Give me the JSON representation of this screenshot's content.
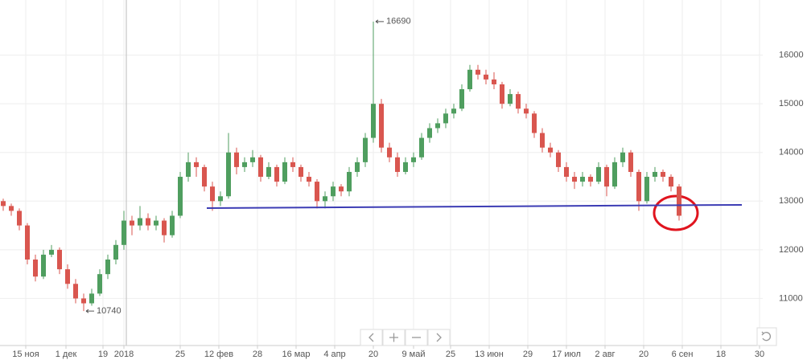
{
  "chart_data": {
    "type": "candlestick",
    "up_color": "#4f9e5f",
    "down_color": "#d9564f",
    "xlim": [
      0,
      240
    ],
    "ylim": [
      10000,
      17100
    ],
    "xticks": [
      {
        "value": 8,
        "label": "15 ноя"
      },
      {
        "value": 20.5,
        "label": "1 дек"
      },
      {
        "value": 32,
        "label": "19"
      },
      {
        "value": 38.5,
        "label": "2018"
      },
      {
        "value": 56,
        "label": "25"
      },
      {
        "value": 68,
        "label": "12 фев"
      },
      {
        "value": 80,
        "label": "28"
      },
      {
        "value": 92,
        "label": "16 мар"
      },
      {
        "value": 104,
        "label": "4 апр"
      },
      {
        "value": 116,
        "label": "20"
      },
      {
        "value": 128.5,
        "label": "9 май"
      },
      {
        "value": 140,
        "label": "25"
      },
      {
        "value": 152,
        "label": "13 июн"
      },
      {
        "value": 164,
        "label": "29"
      },
      {
        "value": 176,
        "label": "17 июл"
      },
      {
        "value": 188,
        "label": "2 авг"
      },
      {
        "value": 200,
        "label": "20"
      },
      {
        "value": 212,
        "label": "6 сен"
      },
      {
        "value": 224,
        "label": "18"
      },
      {
        "value": 236,
        "label": "30"
      }
    ],
    "yticks": [
      11000,
      12000,
      13000,
      14000,
      15000,
      16000
    ],
    "grid": true,
    "high_label": 16690,
    "low_label": 10740,
    "lines": [
      {
        "x": [
          64.25,
          230.5
        ],
        "y": [
          12857,
          12923
        ],
        "color": "#3c3cb4"
      }
    ],
    "candles": [
      [
        13000,
        13050,
        12800,
        12900
      ],
      [
        12900,
        12950,
        12700,
        12800
      ],
      [
        12800,
        12850,
        12400,
        12500
      ],
      [
        12500,
        12550,
        11700,
        11800
      ],
      [
        11800,
        11900,
        11350,
        11450
      ],
      [
        11450,
        12000,
        11400,
        11900
      ],
      [
        11900,
        12100,
        11850,
        12000
      ],
      [
        12000,
        12050,
        11500,
        11600
      ],
      [
        11600,
        11700,
        11200,
        11300
      ],
      [
        11300,
        11400,
        10900,
        11000
      ],
      [
        11000,
        11100,
        10740,
        10900
      ],
      [
        10900,
        11200,
        10850,
        11100
      ],
      [
        11100,
        11600,
        11050,
        11500
      ],
      [
        11500,
        11900,
        11400,
        11800
      ],
      [
        11800,
        12200,
        11700,
        12100
      ],
      [
        12100,
        12800,
        12000,
        12600
      ],
      [
        12600,
        12700,
        12300,
        12500
      ],
      [
        12500,
        12900,
        12400,
        12650
      ],
      [
        12650,
        12750,
        12400,
        12500
      ],
      [
        12500,
        12700,
        12400,
        12600
      ],
      [
        12600,
        12650,
        12150,
        12300
      ],
      [
        12300,
        12800,
        12250,
        12700
      ],
      [
        12700,
        13600,
        12650,
        13500
      ],
      [
        13500,
        14000,
        13400,
        13800
      ],
      [
        13800,
        13900,
        13500,
        13700
      ],
      [
        13700,
        13750,
        13200,
        13300
      ],
      [
        13300,
        13400,
        12800,
        13000
      ],
      [
        13000,
        13200,
        12900,
        13100
      ],
      [
        13100,
        14400,
        13050,
        14000
      ],
      [
        14000,
        14100,
        13550,
        13700
      ],
      [
        13700,
        13900,
        13600,
        13800
      ],
      [
        13800,
        14050,
        13700,
        13900
      ],
      [
        13900,
        13950,
        13400,
        13500
      ],
      [
        13500,
        13800,
        13450,
        13700
      ],
      [
        13700,
        13750,
        13300,
        13400
      ],
      [
        13400,
        13900,
        13350,
        13800
      ],
      [
        13800,
        13900,
        13600,
        13700
      ],
      [
        13700,
        13750,
        13400,
        13500
      ],
      [
        13500,
        13600,
        13300,
        13400
      ],
      [
        13400,
        13450,
        12850,
        13000
      ],
      [
        13000,
        13200,
        12850,
        13100
      ],
      [
        13100,
        13400,
        13000,
        13300
      ],
      [
        13300,
        13350,
        13100,
        13200
      ],
      [
        13200,
        13700,
        13100,
        13600
      ],
      [
        13600,
        13900,
        13500,
        13800
      ],
      [
        13800,
        14400,
        13700,
        14300
      ],
      [
        14300,
        16690,
        14200,
        15000
      ],
      [
        15000,
        15100,
        14000,
        14100
      ],
      [
        14100,
        14200,
        13800,
        13900
      ],
      [
        13900,
        14000,
        13500,
        13600
      ],
      [
        13600,
        13900,
        13550,
        13800
      ],
      [
        13800,
        14000,
        13700,
        13900
      ],
      [
        13900,
        14400,
        13850,
        14300
      ],
      [
        14300,
        14600,
        14200,
        14500
      ],
      [
        14500,
        14700,
        14400,
        14600
      ],
      [
        14600,
        14900,
        14500,
        14800
      ],
      [
        14800,
        15000,
        14700,
        14900
      ],
      [
        14900,
        15400,
        14850,
        15300
      ],
      [
        15300,
        15800,
        15250,
        15700
      ],
      [
        15700,
        15800,
        15500,
        15600
      ],
      [
        15600,
        15700,
        15400,
        15500
      ],
      [
        15500,
        15650,
        15300,
        15400
      ],
      [
        15400,
        15450,
        14900,
        15000
      ],
      [
        15000,
        15300,
        14950,
        15200
      ],
      [
        15200,
        15250,
        14800,
        14900
      ],
      [
        14900,
        15000,
        14700,
        14800
      ],
      [
        14800,
        14850,
        14300,
        14400
      ],
      [
        14400,
        14500,
        14000,
        14100
      ],
      [
        14100,
        14200,
        13900,
        14000
      ],
      [
        14000,
        14050,
        13600,
        13700
      ],
      [
        13700,
        13800,
        13400,
        13500
      ],
      [
        13500,
        13600,
        13250,
        13400
      ],
      [
        13400,
        13600,
        13300,
        13500
      ],
      [
        13500,
        13550,
        13300,
        13400
      ],
      [
        13400,
        13800,
        13350,
        13700
      ],
      [
        13700,
        13750,
        13100,
        13300
      ],
      [
        13300,
        13900,
        13250,
        13800
      ],
      [
        13800,
        14100,
        13700,
        14000
      ],
      [
        14000,
        14050,
        13500,
        13600
      ],
      [
        13600,
        13650,
        12800,
        13000
      ],
      [
        13000,
        13600,
        12950,
        13500
      ],
      [
        13500,
        13700,
        13400,
        13600
      ],
      [
        13600,
        13650,
        13400,
        13500
      ],
      [
        13500,
        13550,
        13200,
        13300
      ],
      [
        13300,
        13350,
        12600,
        12700
      ]
    ]
  }
}
